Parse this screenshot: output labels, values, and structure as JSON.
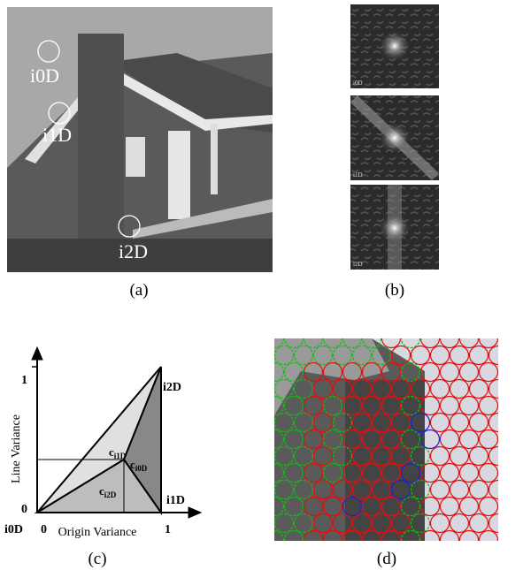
{
  "panels": [
    {
      "caption": "(a)",
      "labels": [
        "i0D",
        "i1D",
        "i2D"
      ]
    },
    {
      "caption": "(b)",
      "labels": [
        "i0D",
        "i1D",
        "i2D"
      ]
    },
    {
      "caption": "(c)",
      "y_axis_label": "Line Variance",
      "x_axis_label": "Origin Variance",
      "y_one": "1",
      "y_zero": "0",
      "x_zero": "0",
      "x_one": "1",
      "corners": [
        "i0D",
        "i1D",
        "i2D"
      ],
      "regions": [
        {
          "base": "c",
          "sub": "i1D"
        },
        {
          "base": "c",
          "sub": "i0D"
        },
        {
          "base": "c",
          "sub": "i2D"
        }
      ]
    },
    {
      "caption": "(d)"
    }
  ]
}
